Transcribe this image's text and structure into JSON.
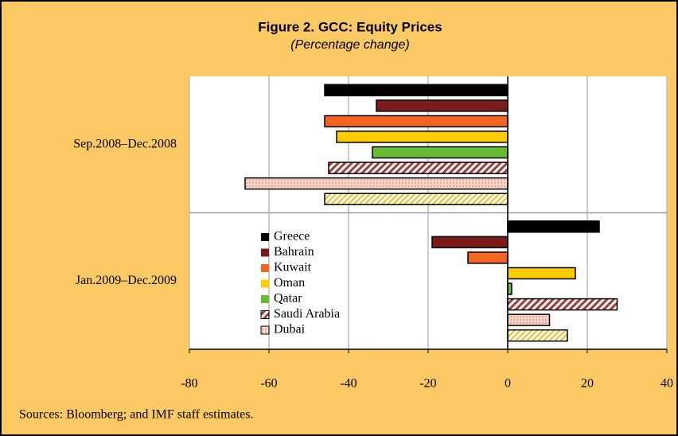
{
  "chart_data": {
    "type": "barh",
    "title": "Figure 2. GCC: Equity Prices",
    "subtitle": "(Percentage change)",
    "source": "Sources: Bloomberg; and IMF staff estimates.",
    "categories": [
      "Sep.2008–Dec.2008",
      "Jan.2009–Dec.2009"
    ],
    "series": [
      {
        "name": "Greece",
        "color": "#000000",
        "pattern": "solid",
        "values": [
          -46,
          23
        ]
      },
      {
        "name": "Bahrain",
        "color": "#7b1a1a",
        "pattern": "solid",
        "values": [
          -33,
          -19
        ]
      },
      {
        "name": "Kuwait",
        "color": "#f26522",
        "pattern": "solid",
        "values": [
          -46,
          -10
        ]
      },
      {
        "name": "Oman",
        "color": "#ffcc00",
        "pattern": "solid",
        "values": [
          -43,
          17
        ]
      },
      {
        "name": "Qatar",
        "color": "#66bb33",
        "pattern": "solid",
        "values": [
          -34,
          1
        ]
      },
      {
        "name": "Saudi Arabia",
        "color": "#a33a3a",
        "pattern": "hatch",
        "values": [
          -45,
          27.5
        ]
      },
      {
        "name": "Dubai",
        "color": "#f4b8a8",
        "pattern": "dots",
        "values": [
          -66,
          10.5
        ]
      },
      {
        "name": null,
        "color": "#e8c020",
        "pattern": "hatch",
        "values": [
          -46,
          15
        ]
      }
    ],
    "xlim": [
      -80,
      40
    ],
    "xticks": [
      -80,
      -60,
      -40,
      -20,
      0,
      20,
      40
    ],
    "grid": true
  }
}
